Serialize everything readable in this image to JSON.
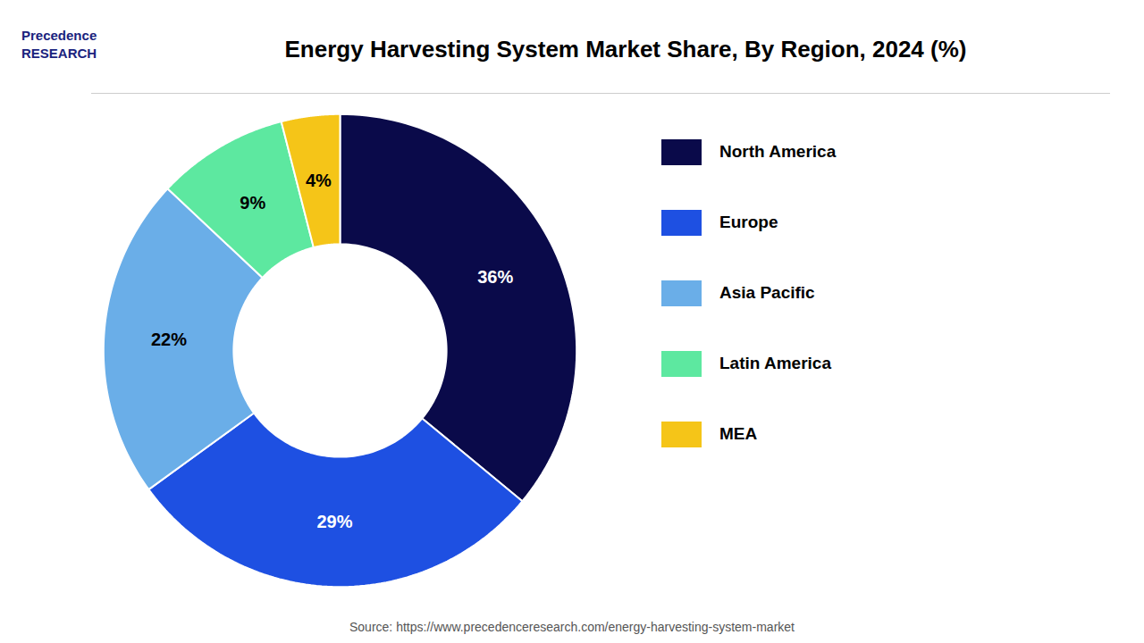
{
  "chart_data": {
    "type": "pie",
    "title": "Energy Harvesting System Market Share, By Region, 2024 (%)",
    "categories": [
      "North America",
      "Europe",
      "Asia Pacific",
      "Latin America",
      "MEA"
    ],
    "values": [
      36,
      29,
      22,
      9,
      4
    ],
    "value_labels": [
      "36%",
      "29%",
      "22%",
      "9%",
      "4%"
    ],
    "colors": [
      "#0a0a4a",
      "#1e50e2",
      "#6aaee8",
      "#5de8a0",
      "#f5c518"
    ],
    "data_labels": true,
    "legend": "right",
    "source": "Source: https://www.precedenceresearch.com/energy-harvesting-system-market",
    "annotations": [
      "Precedence",
      "RESEARCH"
    ]
  }
}
